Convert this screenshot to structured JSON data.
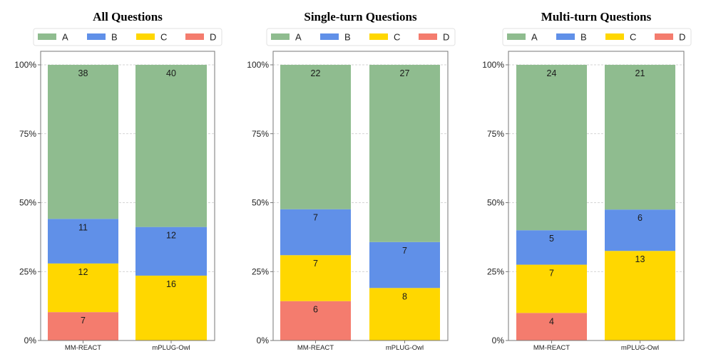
{
  "chart_data": [
    {
      "type": "bar",
      "stacked": true,
      "normalized": true,
      "title": "All Questions",
      "categories": [
        "MM-REACT",
        "mPLUG-Owl"
      ],
      "series": [
        {
          "name": "D",
          "values": [
            7,
            0
          ],
          "color": "#f47c6e"
        },
        {
          "name": "C",
          "values": [
            12,
            16
          ],
          "color": "#ffd700"
        },
        {
          "name": "B",
          "values": [
            11,
            12
          ],
          "color": "#6090e8"
        },
        {
          "name": "A",
          "values": [
            38,
            40
          ],
          "color": "#8fbc8f"
        }
      ],
      "yticks": [
        "0%",
        "25%",
        "50%",
        "75%",
        "100%"
      ],
      "ylim": [
        0,
        100
      ],
      "grid": true,
      "legend": [
        "A",
        "B",
        "C",
        "D"
      ],
      "legend_position": "top"
    },
    {
      "type": "bar",
      "stacked": true,
      "normalized": true,
      "title": "Single-turn Questions",
      "categories": [
        "MM-REACT",
        "mPLUG-Owl"
      ],
      "series": [
        {
          "name": "D",
          "values": [
            6,
            0
          ],
          "color": "#f47c6e"
        },
        {
          "name": "C",
          "values": [
            7,
            8
          ],
          "color": "#ffd700"
        },
        {
          "name": "B",
          "values": [
            7,
            7
          ],
          "color": "#6090e8"
        },
        {
          "name": "A",
          "values": [
            22,
            27
          ],
          "color": "#8fbc8f"
        }
      ],
      "yticks": [
        "0%",
        "25%",
        "50%",
        "75%",
        "100%"
      ],
      "ylim": [
        0,
        100
      ],
      "grid": true,
      "legend": [
        "A",
        "B",
        "C",
        "D"
      ],
      "legend_position": "top"
    },
    {
      "type": "bar",
      "stacked": true,
      "normalized": true,
      "title": "Multi-turn Questions",
      "categories": [
        "MM-REACT",
        "mPLUG-Owl"
      ],
      "series": [
        {
          "name": "D",
          "values": [
            4,
            0
          ],
          "color": "#f47c6e"
        },
        {
          "name": "C",
          "values": [
            7,
            13
          ],
          "color": "#ffd700"
        },
        {
          "name": "B",
          "values": [
            5,
            6
          ],
          "color": "#6090e8"
        },
        {
          "name": "A",
          "values": [
            24,
            21
          ],
          "color": "#8fbc8f"
        }
      ],
      "yticks": [
        "0%",
        "25%",
        "50%",
        "75%",
        "100%"
      ],
      "ylim": [
        0,
        100
      ],
      "grid": true,
      "legend": [
        "A",
        "B",
        "C",
        "D"
      ],
      "legend_position": "top"
    }
  ]
}
